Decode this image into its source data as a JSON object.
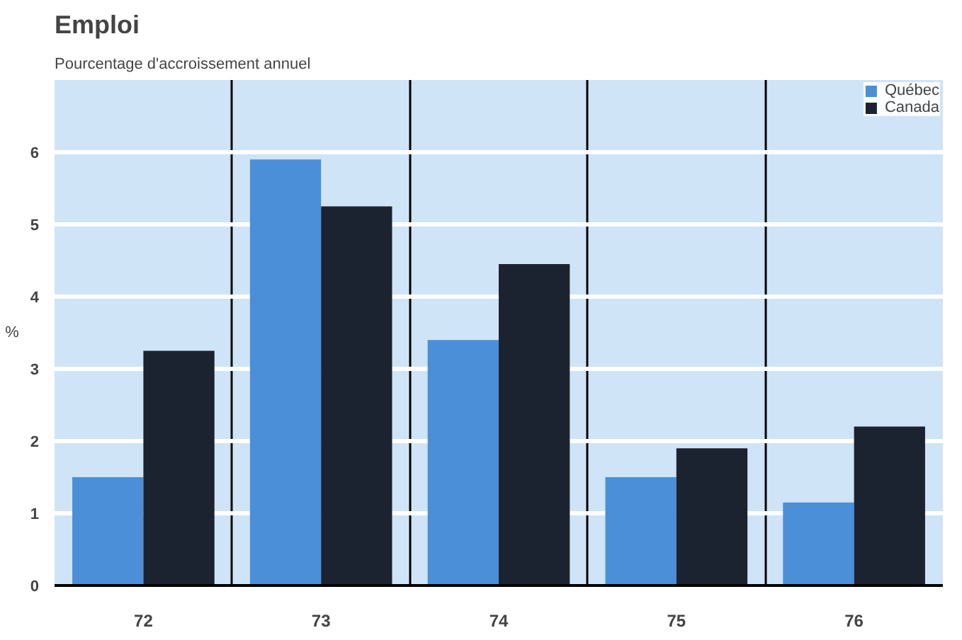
{
  "chart_data": {
    "type": "bar",
    "title": "Emploi",
    "subtitle": "Pourcentage d'accroissement annuel",
    "ylabel": "%",
    "categories": [
      "72",
      "73",
      "74",
      "75",
      "76"
    ],
    "series": [
      {
        "name": "Québec",
        "color": "#4a8fd8",
        "values": [
          1.5,
          5.9,
          3.4,
          1.5,
          1.15
        ]
      },
      {
        "name": "Canada",
        "color": "#1c2330",
        "values": [
          3.25,
          5.25,
          4.45,
          1.9,
          2.2
        ]
      }
    ],
    "ylim": [
      0,
      7
    ],
    "yticks": [
      0,
      1,
      2,
      3,
      4,
      5,
      6
    ],
    "grid": "y",
    "legend": "top right"
  }
}
